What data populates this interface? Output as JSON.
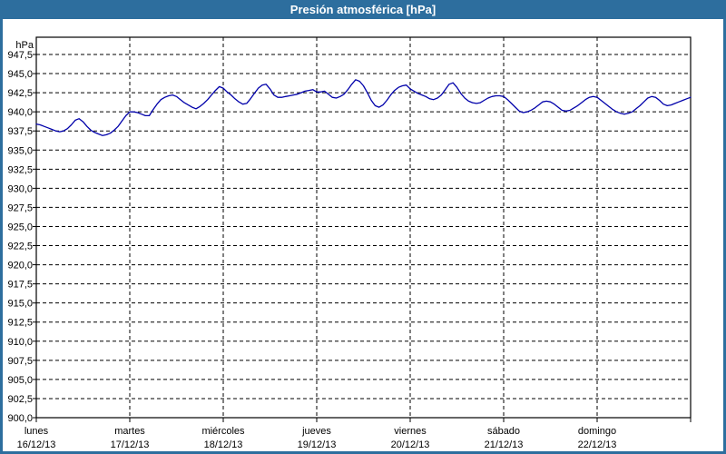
{
  "window": {
    "title": "Presión atmosférica [hPa]"
  },
  "colors": {
    "titlebar_bg": "#2d6e9e",
    "titlebar_text": "#ffffff",
    "window_border": "#2d6e9e",
    "plot_background": "#ffffff",
    "plot_frame": "#000000",
    "grid": "#000000",
    "axis_text": "#000000",
    "line": "#0000aa"
  },
  "y_axis": {
    "unit_label": "hPa",
    "tick_labels": [
      "947,5",
      "945,0",
      "942,5",
      "940,0",
      "937,5",
      "935,0",
      "932,5",
      "930,0",
      "927,5",
      "925,0",
      "922,5",
      "920,0",
      "917,5",
      "915,0",
      "912,5",
      "910,0",
      "907,5",
      "905,0",
      "902,5",
      "900,0"
    ],
    "min": 900.0,
    "max": 947.5,
    "step": 2.5
  },
  "x_axis": {
    "days": [
      {
        "name": "lunes",
        "date": "16/12/13"
      },
      {
        "name": "martes",
        "date": "17/12/13"
      },
      {
        "name": "miércoles",
        "date": "18/12/13"
      },
      {
        "name": "jueves",
        "date": "19/12/13"
      },
      {
        "name": "viernes",
        "date": "20/12/13"
      },
      {
        "name": "sábado",
        "date": "21/12/13"
      },
      {
        "name": "domingo",
        "date": "22/12/13"
      }
    ]
  },
  "chart_data": {
    "type": "line",
    "title": "Presión atmosférica [hPa]",
    "xlabel": "",
    "ylabel": "hPa",
    "ylim": [
      900,
      950
    ],
    "y_tick_step": 2.5,
    "grid": true,
    "legend_position": "none",
    "decimal_separator": ",",
    "x_start": "lunes 16/12/13 00:00",
    "x_interval_hours": 1,
    "x_span_days": 7,
    "series": [
      {
        "name": "Presión atmosférica",
        "unit": "hPa",
        "values": [
          938.4,
          938.3,
          938.1,
          937.9,
          937.7,
          937.5,
          937.4,
          937.5,
          937.8,
          938.3,
          938.9,
          939.1,
          938.7,
          938.1,
          937.6,
          937.3,
          937.1,
          936.9,
          937.0,
          937.2,
          937.6,
          938.1,
          938.8,
          939.5,
          940.0,
          940.0,
          939.9,
          939.7,
          939.5,
          939.5,
          940.3,
          941.0,
          941.6,
          941.9,
          942.1,
          942.2,
          942.0,
          941.6,
          941.2,
          940.9,
          940.6,
          940.4,
          940.7,
          941.1,
          941.6,
          942.2,
          942.8,
          943.3,
          943.1,
          942.6,
          942.2,
          941.7,
          941.3,
          941.0,
          941.1,
          941.7,
          942.4,
          943.1,
          943.5,
          943.6,
          943.0,
          942.2,
          941.9,
          941.9,
          942.0,
          942.1,
          942.2,
          942.3,
          942.5,
          942.7,
          942.8,
          942.9,
          942.6,
          942.6,
          942.7,
          942.3,
          941.9,
          941.8,
          942.0,
          942.3,
          942.9,
          943.6,
          944.2,
          944.0,
          943.4,
          942.5,
          941.5,
          940.8,
          940.6,
          940.9,
          941.5,
          942.2,
          942.8,
          943.2,
          943.4,
          943.5,
          943.0,
          942.7,
          942.4,
          942.2,
          942.0,
          941.7,
          941.6,
          941.8,
          942.2,
          942.9,
          943.6,
          943.8,
          943.2,
          942.4,
          941.8,
          941.4,
          941.2,
          941.1,
          941.2,
          941.5,
          941.8,
          942.0,
          942.1,
          942.1,
          942.0,
          941.6,
          941.1,
          940.6,
          940.1,
          939.9,
          940.0,
          940.2,
          940.5,
          940.9,
          941.3,
          941.4,
          941.3,
          941.0,
          940.6,
          940.2,
          940.1,
          940.2,
          940.5,
          940.8,
          941.2,
          941.6,
          941.9,
          942.0,
          941.9,
          941.5,
          941.1,
          940.7,
          940.3,
          940.0,
          939.8,
          939.7,
          939.8,
          940.0,
          940.4,
          940.8,
          941.3,
          941.8,
          942.0,
          941.9,
          941.5,
          941.0,
          940.8,
          940.9,
          941.1,
          941.3,
          941.5,
          941.7,
          941.9
        ]
      }
    ]
  }
}
